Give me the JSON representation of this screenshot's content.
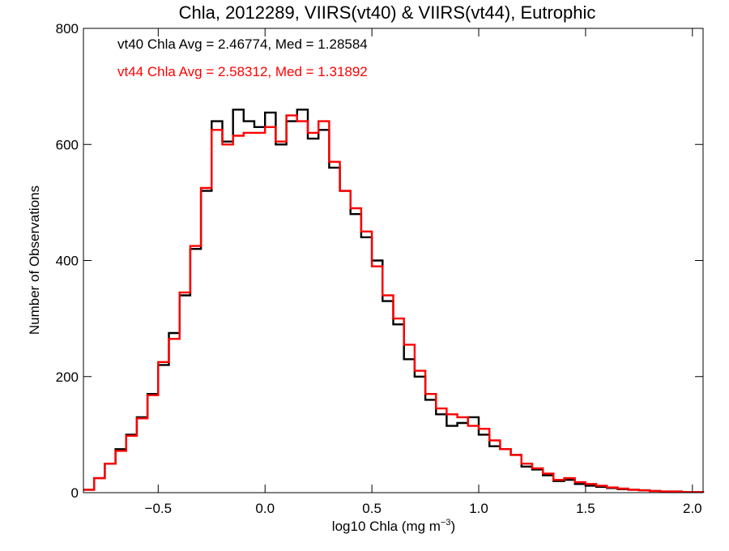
{
  "chart_data": {
    "type": "line",
    "title": "Chla, 2012289, VIIRS(vt40) & VIIRS(vt44), Eutrophic",
    "xlabel": "log10 Chla (mg m",
    "xlabel_sup": "−3",
    "xlabel_close": ")",
    "ylabel": "Number of Observations",
    "xlim": [
      -0.85,
      2.05
    ],
    "ylim": [
      0,
      800
    ],
    "x_ticks": [
      -0.5,
      0.0,
      0.5,
      1.0,
      1.5,
      2.0
    ],
    "x_tick_labels": [
      "−0.5",
      "0.0",
      "0.5",
      "1.0",
      "1.5",
      "2.0"
    ],
    "y_ticks": [
      0,
      200,
      400,
      600,
      800
    ],
    "y_tick_labels": [
      "0",
      "200",
      "400",
      "600",
      "800"
    ],
    "grid": false,
    "annotations": [
      {
        "text": "vt40 Chla Avg = 2.46774, Med = 1.28584",
        "color": "#000000"
      },
      {
        "text": "vt44 Chla Avg = 2.58312, Med = 1.31892",
        "color": "#ff0000"
      }
    ],
    "series": [
      {
        "color": "#000000",
        "x": [
          -0.85,
          -0.8,
          -0.75,
          -0.7,
          -0.65,
          -0.6,
          -0.55,
          -0.5,
          -0.45,
          -0.4,
          -0.35,
          -0.3,
          -0.25,
          -0.2,
          -0.15,
          -0.1,
          -0.05,
          0.0,
          0.05,
          0.1,
          0.15,
          0.2,
          0.25,
          0.3,
          0.35,
          0.4,
          0.45,
          0.5,
          0.55,
          0.6,
          0.65,
          0.7,
          0.75,
          0.8,
          0.85,
          0.9,
          0.95,
          1.0,
          1.05,
          1.1,
          1.15,
          1.2,
          1.25,
          1.3,
          1.35,
          1.4,
          1.45,
          1.5,
          1.55,
          1.6,
          1.65,
          1.7,
          1.75,
          1.8,
          1.85,
          1.9,
          1.95,
          2.0,
          2.05
        ],
        "values": [
          5,
          25,
          50,
          75,
          100,
          130,
          170,
          220,
          275,
          340,
          420,
          520,
          640,
          605,
          660,
          640,
          630,
          655,
          600,
          640,
          660,
          610,
          625,
          560,
          520,
          480,
          440,
          400,
          330,
          290,
          230,
          200,
          160,
          135,
          115,
          120,
          130,
          100,
          80,
          75,
          65,
          45,
          40,
          30,
          20,
          22,
          15,
          12,
          10,
          8,
          6,
          5,
          4,
          3,
          2,
          2,
          1,
          1,
          0
        ]
      },
      {
        "color": "#ff0000",
        "x": [
          -0.85,
          -0.8,
          -0.75,
          -0.7,
          -0.65,
          -0.6,
          -0.55,
          -0.5,
          -0.45,
          -0.4,
          -0.35,
          -0.3,
          -0.25,
          -0.2,
          -0.15,
          -0.1,
          -0.05,
          0.0,
          0.05,
          0.1,
          0.15,
          0.2,
          0.25,
          0.3,
          0.35,
          0.4,
          0.45,
          0.5,
          0.55,
          0.6,
          0.65,
          0.7,
          0.75,
          0.8,
          0.85,
          0.9,
          0.95,
          1.0,
          1.05,
          1.1,
          1.15,
          1.2,
          1.25,
          1.3,
          1.35,
          1.4,
          1.45,
          1.5,
          1.55,
          1.6,
          1.65,
          1.7,
          1.75,
          1.8,
          1.85,
          1.9,
          1.95,
          2.0,
          2.05
        ],
        "values": [
          5,
          25,
          50,
          72,
          98,
          128,
          168,
          225,
          265,
          345,
          425,
          525,
          625,
          600,
          615,
          620,
          620,
          630,
          605,
          650,
          640,
          620,
          640,
          570,
          520,
          490,
          450,
          390,
          340,
          300,
          255,
          210,
          170,
          145,
          135,
          130,
          115,
          110,
          90,
          75,
          65,
          50,
          42,
          33,
          22,
          25,
          18,
          15,
          12,
          9,
          7,
          5,
          4,
          3,
          2,
          2,
          1,
          1,
          0
        ]
      }
    ]
  }
}
